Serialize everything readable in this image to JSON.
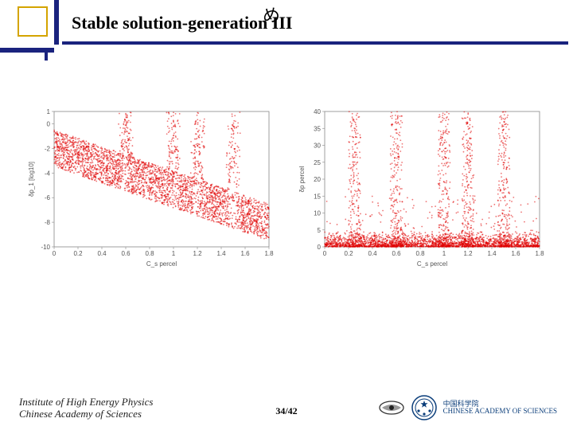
{
  "header": {
    "title": "Stable solution-generation III",
    "overlay_glyph": "め"
  },
  "left_chart": {
    "type": "scatter",
    "xlabel": "C_s percel",
    "ylabel": "δp_1 [log10]",
    "xlim": [
      0,
      1.8
    ],
    "ylim": [
      -10,
      1
    ],
    "xticks": [
      0,
      0.2,
      0.4,
      0.6,
      0.8,
      1,
      1.2,
      1.4,
      1.6,
      1.8
    ],
    "yticks": [
      -10,
      -8,
      -6,
      -4,
      -2,
      0,
      1
    ],
    "point_color": "#e00000",
    "point_size": 0.9,
    "grid_color": "#dddddd",
    "axis_color": "#888888",
    "background_color": "#ffffff",
    "peak_positions": [
      0.6,
      1.0,
      1.2,
      1.5
    ],
    "band_baseline_start": -2,
    "band_baseline_end": -8,
    "band_width": 3
  },
  "right_chart": {
    "type": "scatter",
    "xlabel": "C_s percel",
    "ylabel": "δp percel",
    "xlim": [
      0,
      1.8
    ],
    "ylim": [
      0,
      40
    ],
    "xticks": [
      0,
      0.2,
      0.4,
      0.6,
      0.8,
      1,
      1.2,
      1.4,
      1.6,
      1.8
    ],
    "yticks": [
      0,
      5,
      10,
      15,
      20,
      25,
      30,
      35,
      40
    ],
    "point_color": "#e00000",
    "point_size": 0.9,
    "grid_color": "#dddddd",
    "axis_color": "#888888",
    "background_color": "#ffffff",
    "peak_positions": [
      0.25,
      0.6,
      1.0,
      1.2,
      1.5
    ],
    "floor_density_height": 5,
    "peak_height": 40
  },
  "footer": {
    "institute_line1": "Institute of High Energy Physics",
    "institute_line2": "Chinese Academy of Sciences",
    "page": "34/42",
    "cas_line1": "中国科学院",
    "cas_line2": "CHINESE ACADEMY OF SCIENCES"
  },
  "colors": {
    "accent_navy": "#1a237e",
    "accent_gold": "#d4a400",
    "cas_blue": "#0a3d7a"
  }
}
